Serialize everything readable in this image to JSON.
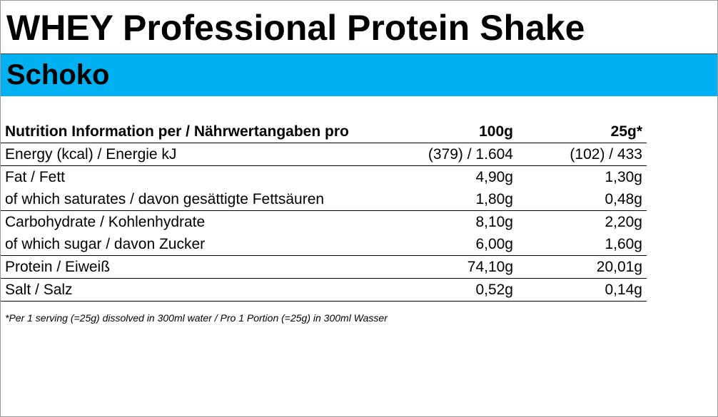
{
  "header": {
    "title": "WHEY Professional Protein Shake",
    "subtitle": "Schoko"
  },
  "table": {
    "header": [
      "Nutrition Information per / Nährwertangaben pro",
      "100g",
      "25g*"
    ],
    "rows": [
      [
        "Energy (kcal) / Energie kJ",
        "(379) / 1.604",
        "(102) / 433"
      ],
      [
        "Fat / Fett",
        "4,90g",
        "1,30g"
      ],
      [
        "of which saturates / davon gesättigte Fettsäuren",
        "1,80g",
        "0,48g"
      ],
      [
        "Carbohydrate / Kohlenhydrate",
        "8,10g",
        "2,20g"
      ],
      [
        "of which sugar / davon Zucker",
        "6,00g",
        "1,60g"
      ],
      [
        "Protein / Eiweiß",
        "74,10g",
        "20,01g"
      ],
      [
        "Salt / Salz",
        "0,52g",
        "0,14g"
      ]
    ]
  },
  "footnote": "*Per 1 serving (=25g) dissolved in 300ml water / Pro 1 Portion (=25g) in 300ml Wasser"
}
